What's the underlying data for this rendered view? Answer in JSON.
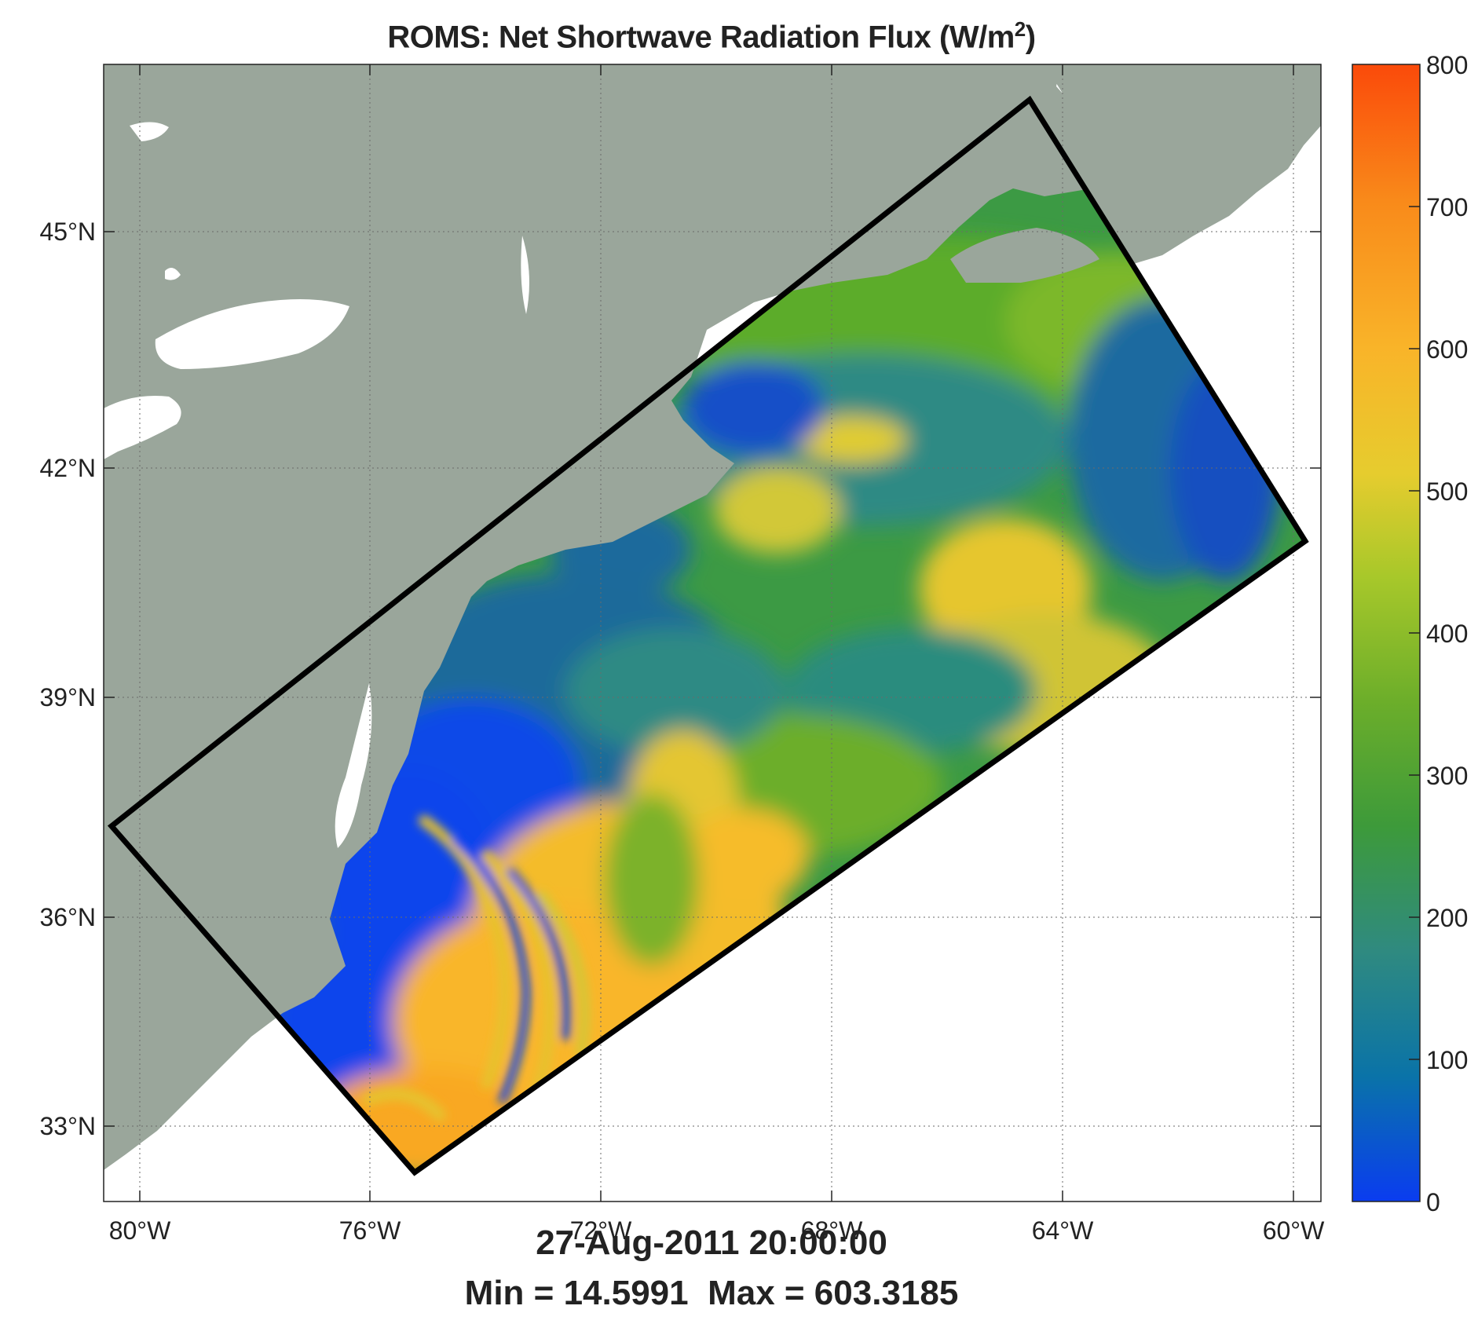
{
  "map": {
    "title_main": "ROMS: Net Shortwave Radiation Flux (W/m",
    "title_sup": "2",
    "title_close": ")",
    "footer_time": "27-Aug-2011 20:00:00",
    "footer_stats": "Min = 14.5991  Max = 603.3185",
    "lat_ticks": [
      "45°N",
      "42°N",
      "39°N",
      "36°N",
      "33°N"
    ],
    "lon_ticks": [
      "80°W",
      "76°W",
      "72°W",
      "68°W",
      "64°W",
      "60°W"
    ],
    "colorbar": {
      "ticks": [
        "800",
        "700",
        "600",
        "500",
        "400",
        "300",
        "200",
        "100",
        "0"
      ],
      "range": [
        0,
        800
      ],
      "colors": [
        "#0a3cf0",
        "#0a73a8",
        "#2f8a80",
        "#3d9a3a",
        "#6cae2a",
        "#a8c82a",
        "#e6cc2e",
        "#f9b429",
        "#f98a1a",
        "#fa4a0a"
      ]
    },
    "colors": {
      "land": "#9aa69b",
      "ocean_outside": "#ffffff",
      "domain_outline": "#000000"
    }
  }
}
